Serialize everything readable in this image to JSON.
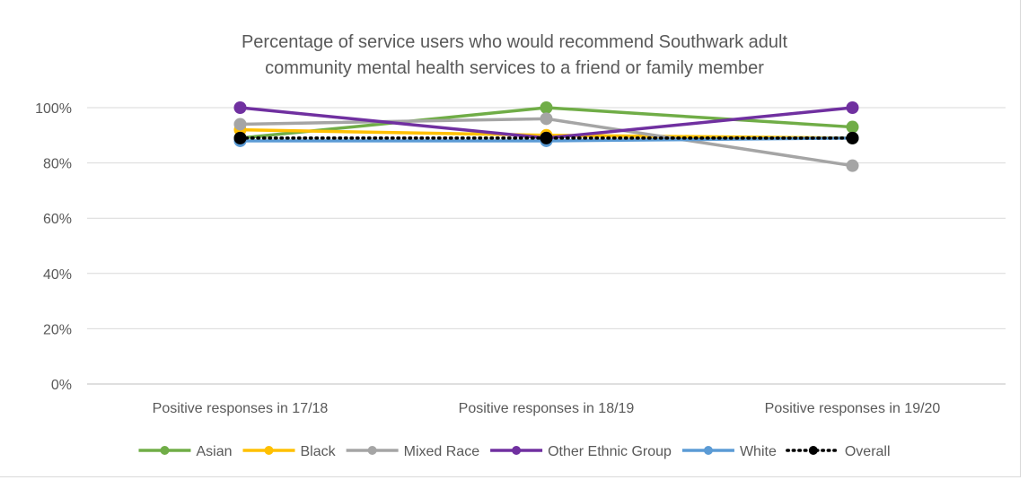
{
  "chart_data": {
    "type": "line",
    "title_lines": [
      "Percentage of service users who would recommend Southwark adult",
      "community mental health services to a friend or family member"
    ],
    "categories": [
      "Positive responses in 17/18",
      "Positive responses in 18/19",
      "Positive responses in 19/20"
    ],
    "ylim": [
      0,
      100
    ],
    "yticks": [
      "0%",
      "20%",
      "40%",
      "60%",
      "80%",
      "100%"
    ],
    "grid": true,
    "legend_position": "bottom",
    "series": [
      {
        "name": "Asian",
        "color": "#70ad47",
        "values": [
          89,
          100,
          93
        ],
        "dash": "solid"
      },
      {
        "name": "Black",
        "color": "#ffc000",
        "values": [
          92,
          90,
          89
        ],
        "dash": "solid"
      },
      {
        "name": "Mixed Race",
        "color": "#a5a5a5",
        "values": [
          94,
          96,
          79
        ],
        "dash": "solid"
      },
      {
        "name": "Other Ethnic Group",
        "color": "#7030a0",
        "values": [
          100,
          89,
          100
        ],
        "dash": "solid"
      },
      {
        "name": "White",
        "color": "#5b9bd5",
        "values": [
          88,
          88,
          89
        ],
        "dash": "solid"
      },
      {
        "name": "Overall",
        "color": "#000000",
        "values": [
          89,
          89,
          89
        ],
        "dash": "dotted"
      }
    ]
  }
}
